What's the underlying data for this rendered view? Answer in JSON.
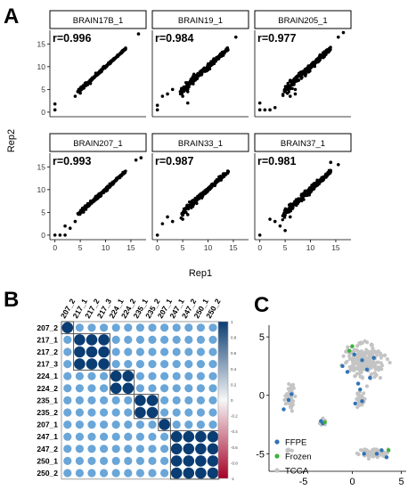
{
  "panel_labels": {
    "a": "A",
    "b": "B",
    "c": "C"
  },
  "chart_data": [
    {
      "type": "scatter",
      "panel": "A",
      "xlabel": "Rep1",
      "ylabel": "Rep2",
      "xlim": [
        -1,
        18
      ],
      "ylim": [
        -1,
        18
      ],
      "x_ticks": [
        0,
        5,
        10,
        15
      ],
      "y_ticks": [
        0,
        5,
        10,
        15
      ],
      "grid": false,
      "facets": [
        {
          "name": "BRAIN17B_1",
          "r_label": "r=0.996",
          "outliers": [
            [
              0,
              0.5
            ],
            [
              0,
              1.8
            ],
            [
              4,
              3.5
            ],
            [
              5,
              4.2
            ],
            [
              7,
              6.3
            ],
            [
              16.5,
              17.2
            ]
          ]
        },
        {
          "name": "BRAIN19_1",
          "r_label": "r=0.984",
          "outliers": [
            [
              0,
              0.5
            ],
            [
              0,
              1.5
            ],
            [
              1,
              3.5
            ],
            [
              2,
              4
            ],
            [
              3,
              5
            ],
            [
              5,
              3.5
            ],
            [
              6,
              4.5
            ],
            [
              6,
              2
            ],
            [
              13,
              12.5
            ],
            [
              15.5,
              16.5
            ]
          ]
        },
        {
          "name": "BRAIN205_1",
          "r_label": "r=0.977",
          "outliers": [
            [
              0,
              2
            ],
            [
              0,
              0.5
            ],
            [
              1,
              0.5
            ],
            [
              2,
              0.5
            ],
            [
              3,
              1
            ],
            [
              5,
              4.5
            ],
            [
              6,
              3.5
            ],
            [
              7,
              4
            ],
            [
              7,
              5
            ],
            [
              9,
              8
            ],
            [
              15.5,
              16.5
            ],
            [
              16.5,
              17.5
            ]
          ]
        },
        {
          "name": "BRAIN207_1",
          "r_label": "r=0.993",
          "outliers": [
            [
              0,
              0
            ],
            [
              1,
              0
            ],
            [
              2,
              0
            ],
            [
              2,
              2
            ],
            [
              3,
              1.5
            ],
            [
              4,
              3
            ],
            [
              16,
              16.5
            ],
            [
              17,
              17
            ]
          ]
        },
        {
          "name": "BRAIN33_1",
          "r_label": "r=0.987",
          "outliers": [
            [
              0,
              0
            ],
            [
              1,
              2.5
            ],
            [
              2,
              4
            ],
            [
              3,
              3
            ],
            [
              5,
              3.5
            ],
            [
              6,
              4.5
            ],
            [
              14,
              14
            ]
          ]
        },
        {
          "name": "BRAIN37_1",
          "r_label": "r=0.981",
          "outliers": [
            [
              0,
              0
            ],
            [
              2,
              3.5
            ],
            [
              3,
              3
            ],
            [
              4,
              2
            ],
            [
              5,
              1
            ],
            [
              6,
              4
            ],
            [
              14,
              16
            ],
            [
              15.5,
              15.5
            ]
          ]
        }
      ]
    },
    {
      "type": "heatmap",
      "panel": "B",
      "labels": [
        "207_2",
        "217_1",
        "217_2",
        "217_3",
        "224_1",
        "224_2",
        "235_1",
        "235_2",
        "207_1",
        "247_1",
        "247_2",
        "250_1",
        "250_2"
      ],
      "colorbar_ticks": [
        "1",
        "0.8",
        "0.6",
        "0.4",
        "0.2",
        "0",
        "-0.2",
        "-0.4",
        "-0.6",
        "-0.8",
        "-1"
      ],
      "colorbar_range": [
        -1,
        1
      ],
      "colors": {
        "high": "#0a3d73",
        "mid": "#f7f7f7",
        "low": "#a50026"
      },
      "group_boxes": [
        [
          0,
          0
        ],
        [
          1,
          3
        ],
        [
          4,
          5
        ],
        [
          6,
          7
        ],
        [
          8,
          8
        ],
        [
          9,
          12
        ]
      ],
      "correlation_rules": {
        "diagonal": 1.0,
        "within_group": 0.95,
        "between_groups": 0.6
      }
    },
    {
      "type": "scatter",
      "panel": "C",
      "x_ticks": [
        -5,
        0,
        5
      ],
      "y_ticks": [
        -5,
        0,
        5
      ],
      "xlim": [
        -8.5,
        5.5
      ],
      "ylim": [
        -6.5,
        6
      ],
      "legend_position": "bottom-left",
      "series": [
        {
          "name": "FFPE",
          "color": "#2f73b6",
          "points": [
            [
              -6.5,
              -0.4
            ],
            [
              -6.2,
              0.1
            ],
            [
              -7.0,
              -1.2
            ],
            [
              -3.2,
              -2.2
            ],
            [
              -3.0,
              -2.4
            ],
            [
              -1.0,
              2.5
            ],
            [
              -0.5,
              2.0
            ],
            [
              0.2,
              3.5
            ],
            [
              1.0,
              3.0
            ],
            [
              1.5,
              2.2
            ],
            [
              2.2,
              3.2
            ],
            [
              1.8,
              1.5
            ],
            [
              0.6,
              1.0
            ],
            [
              1.0,
              -0.5
            ],
            [
              0.3,
              -0.7
            ],
            [
              3.0,
              -4.7
            ],
            [
              2.5,
              -5.0
            ],
            [
              1.2,
              -5.0
            ],
            [
              3.5,
              -5.3
            ],
            [
              0.8,
              0.5
            ]
          ]
        },
        {
          "name": "Frozen",
          "color": "#3bb33b",
          "points": [
            [
              -0.3,
              3.8
            ],
            [
              0.0,
              4.2
            ],
            [
              3.7,
              -4.7
            ],
            [
              -2.8,
              -2.3
            ]
          ]
        },
        {
          "name": "TCGA",
          "color": "#c4c4c4",
          "points": []
        }
      ],
      "tcga_clusters": [
        {
          "center": [
            1.2,
            3.0
          ],
          "spread": [
            1.8,
            1.4
          ],
          "count": 230
        },
        {
          "center": [
            0.8,
            -0.4
          ],
          "spread": [
            0.6,
            0.6
          ],
          "count": 25
        },
        {
          "center": [
            -6.3,
            -0.2
          ],
          "spread": [
            0.6,
            1.1
          ],
          "count": 55
        },
        {
          "center": [
            -3.0,
            -2.3
          ],
          "spread": [
            0.35,
            0.3
          ],
          "count": 12
        },
        {
          "center": [
            2.3,
            -4.9
          ],
          "spread": [
            1.5,
            0.35
          ],
          "count": 70
        },
        {
          "center": [
            -6.5,
            -4.6
          ],
          "spread": [
            0.25,
            0.2
          ],
          "count": 5
        }
      ]
    }
  ]
}
